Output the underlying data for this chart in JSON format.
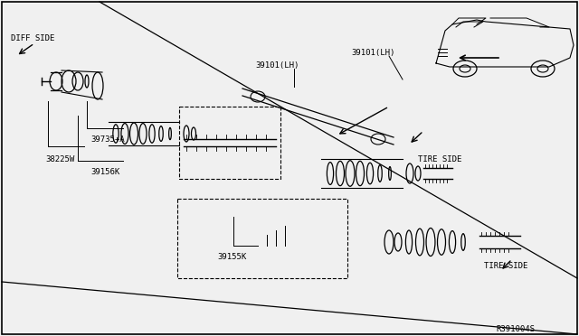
{
  "bg_color": "#f0f0f0",
  "border_color": "#000000",
  "line_color": "#000000",
  "text_color": "#000000",
  "labels": {
    "diff_side": "DIFF SIDE",
    "tire_side_upper": "TIRE SIDE",
    "tire_side_lower": "TIRE SIDE",
    "part_38225W": "38225W",
    "part_39735A": "39735+A",
    "part_39156K": "39156K",
    "part_39155K": "39155K",
    "part_39101_LH_1": "39101(LH)",
    "part_39101_LH_2": "39101(LH)",
    "ref_code": "R391004S"
  }
}
